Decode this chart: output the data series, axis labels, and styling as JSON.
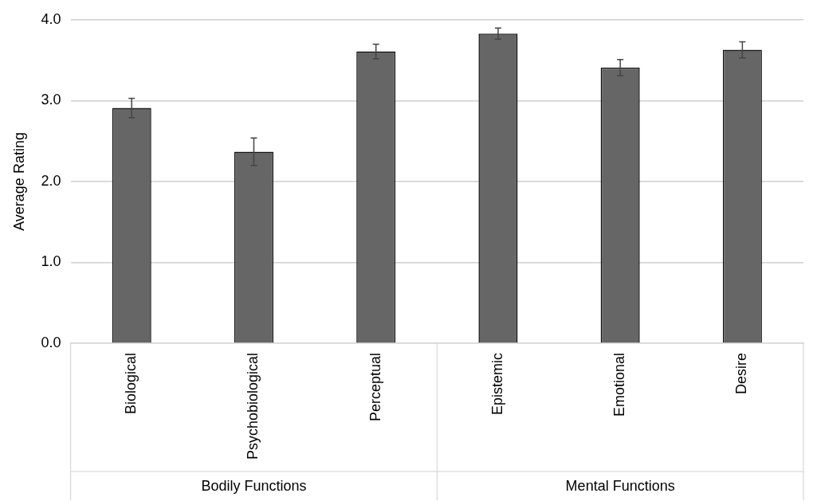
{
  "chart_data": {
    "type": "bar",
    "ylabel": "Average Rating",
    "categories": [
      "Biological",
      "Psychobiological",
      "Perceptual",
      "Epistemic",
      "Emotional",
      "Desire"
    ],
    "values": [
      2.91,
      2.37,
      3.61,
      3.83,
      3.41,
      3.63
    ],
    "errors": [
      0.12,
      0.17,
      0.09,
      0.07,
      0.1,
      0.1
    ],
    "color": "#666666",
    "ylim": [
      0,
      4
    ],
    "yticks": [
      {
        "value": 0,
        "label": "0.0"
      },
      {
        "value": 1,
        "label": "1.0"
      },
      {
        "value": 2,
        "label": "2.0"
      },
      {
        "value": 3,
        "label": "3.0"
      },
      {
        "value": 4,
        "label": "4.0"
      }
    ],
    "grid": "y",
    "legend": false,
    "annotations": [
      "Bodily Functions",
      "Mental Functions"
    ]
  }
}
